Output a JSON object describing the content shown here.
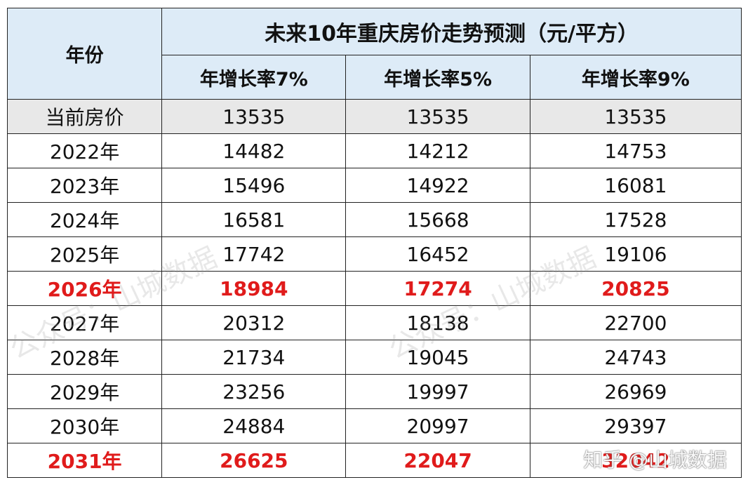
{
  "table": {
    "title": "未来10年重庆房价走势预测（元/平方）",
    "year_header": "年份",
    "sub_headers": [
      "年增长率7%",
      "年增长率5%",
      "年增长率9%"
    ],
    "base_row": {
      "label": "当前房价",
      "values": [
        "13535",
        "13535",
        "13535"
      ]
    },
    "rows": [
      {
        "label": "2022年",
        "values": [
          "14482",
          "14212",
          "14753"
        ],
        "highlight": false
      },
      {
        "label": "2023年",
        "values": [
          "15496",
          "14922",
          "16081"
        ],
        "highlight": false
      },
      {
        "label": "2024年",
        "values": [
          "16581",
          "15668",
          "17528"
        ],
        "highlight": false
      },
      {
        "label": "2025年",
        "values": [
          "17742",
          "16452",
          "19106"
        ],
        "highlight": false
      },
      {
        "label": "2026年",
        "values": [
          "18984",
          "17274",
          "20825"
        ],
        "highlight": true
      },
      {
        "label": "2027年",
        "values": [
          "20312",
          "18138",
          "22700"
        ],
        "highlight": false
      },
      {
        "label": "2028年",
        "values": [
          "21734",
          "19045",
          "24743"
        ],
        "highlight": false
      },
      {
        "label": "2029年",
        "values": [
          "23256",
          "19997",
          "26969"
        ],
        "highlight": false
      },
      {
        "label": "2030年",
        "values": [
          "24884",
          "20997",
          "29397"
        ],
        "highlight": false
      },
      {
        "label": "2031年",
        "values": [
          "26625",
          "22047",
          "32042"
        ],
        "highlight": true
      }
    ]
  },
  "watermarks": {
    "diagonal_1": "公众号：山城数据",
    "diagonal_2": "公众号：山城数据",
    "corner": "知乎 @山城数据"
  },
  "colors": {
    "header_bg": "#ddebf7",
    "base_row_bg": "#e8e8e8",
    "highlight": "#e01b1b"
  }
}
